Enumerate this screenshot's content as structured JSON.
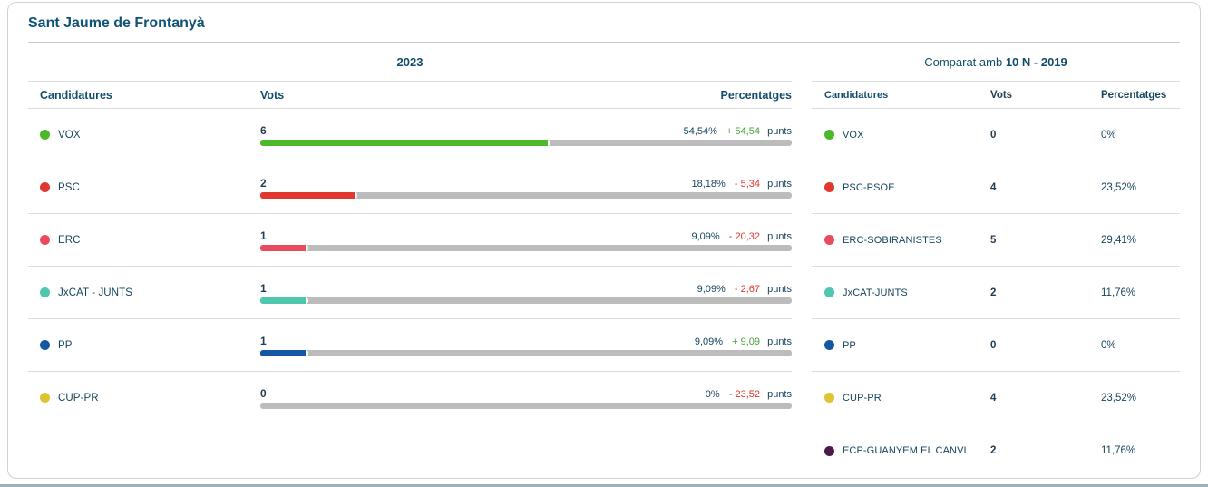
{
  "title": "Sant Jaume de Frontanyà",
  "colors": {
    "positive": "#47a33c",
    "negative": "#e0352d",
    "track": "#bcbcbc"
  },
  "left_panel": {
    "year": "2023",
    "punts_label": "punts",
    "columns": {
      "candidatures": "Candidatures",
      "vots": "Vots",
      "percentatges": "Percentatges"
    },
    "rows": [
      {
        "party": "VOX",
        "color": "#4eb82b",
        "votes": "6",
        "pct": "54,54%",
        "diff": "+ 54,54",
        "bar_pct": 54.54
      },
      {
        "party": "PSC",
        "color": "#e0382f",
        "votes": "2",
        "pct": "18,18%",
        "diff": "- 5,34",
        "bar_pct": 18.18
      },
      {
        "party": "ERC",
        "color": "#ea4a5e",
        "votes": "1",
        "pct": "9,09%",
        "diff": "- 20,32",
        "bar_pct": 9.09
      },
      {
        "party": "JxCAT - JUNTS",
        "color": "#4ec7ad",
        "votes": "1",
        "pct": "9,09%",
        "diff": "- 2,67",
        "bar_pct": 9.09
      },
      {
        "party": "PP",
        "color": "#1458a4",
        "votes": "1",
        "pct": "9,09%",
        "diff": "+ 9,09",
        "bar_pct": 9.09
      },
      {
        "party": "CUP-PR",
        "color": "#ddc430",
        "votes": "0",
        "pct": "0%",
        "diff": "- 23,52",
        "bar_pct": 0
      }
    ]
  },
  "right_panel": {
    "compare_label": "Comparat amb",
    "compare_value": "10 N - 2019",
    "columns": {
      "candidatures": "Candidatures",
      "vots": "Vots",
      "percentatges": "Percentatges"
    },
    "rows": [
      {
        "party": "VOX",
        "color": "#4eb82b",
        "votes": "0",
        "pct": "0%"
      },
      {
        "party": "PSC-PSOE",
        "color": "#e0382f",
        "votes": "4",
        "pct": "23,52%"
      },
      {
        "party": "ERC-SOBIRANISTES",
        "color": "#ea4a5e",
        "votes": "5",
        "pct": "29,41%"
      },
      {
        "party": "JxCAT-JUNTS",
        "color": "#4ec7ad",
        "votes": "2",
        "pct": "11,76%"
      },
      {
        "party": "PP",
        "color": "#1458a4",
        "votes": "0",
        "pct": "0%"
      },
      {
        "party": "CUP-PR",
        "color": "#ddc430",
        "votes": "4",
        "pct": "23,52%"
      },
      {
        "party": "ECP-GUANYEM EL CANVI",
        "color": "#4f1a49",
        "votes": "2",
        "pct": "11,76%"
      }
    ]
  }
}
